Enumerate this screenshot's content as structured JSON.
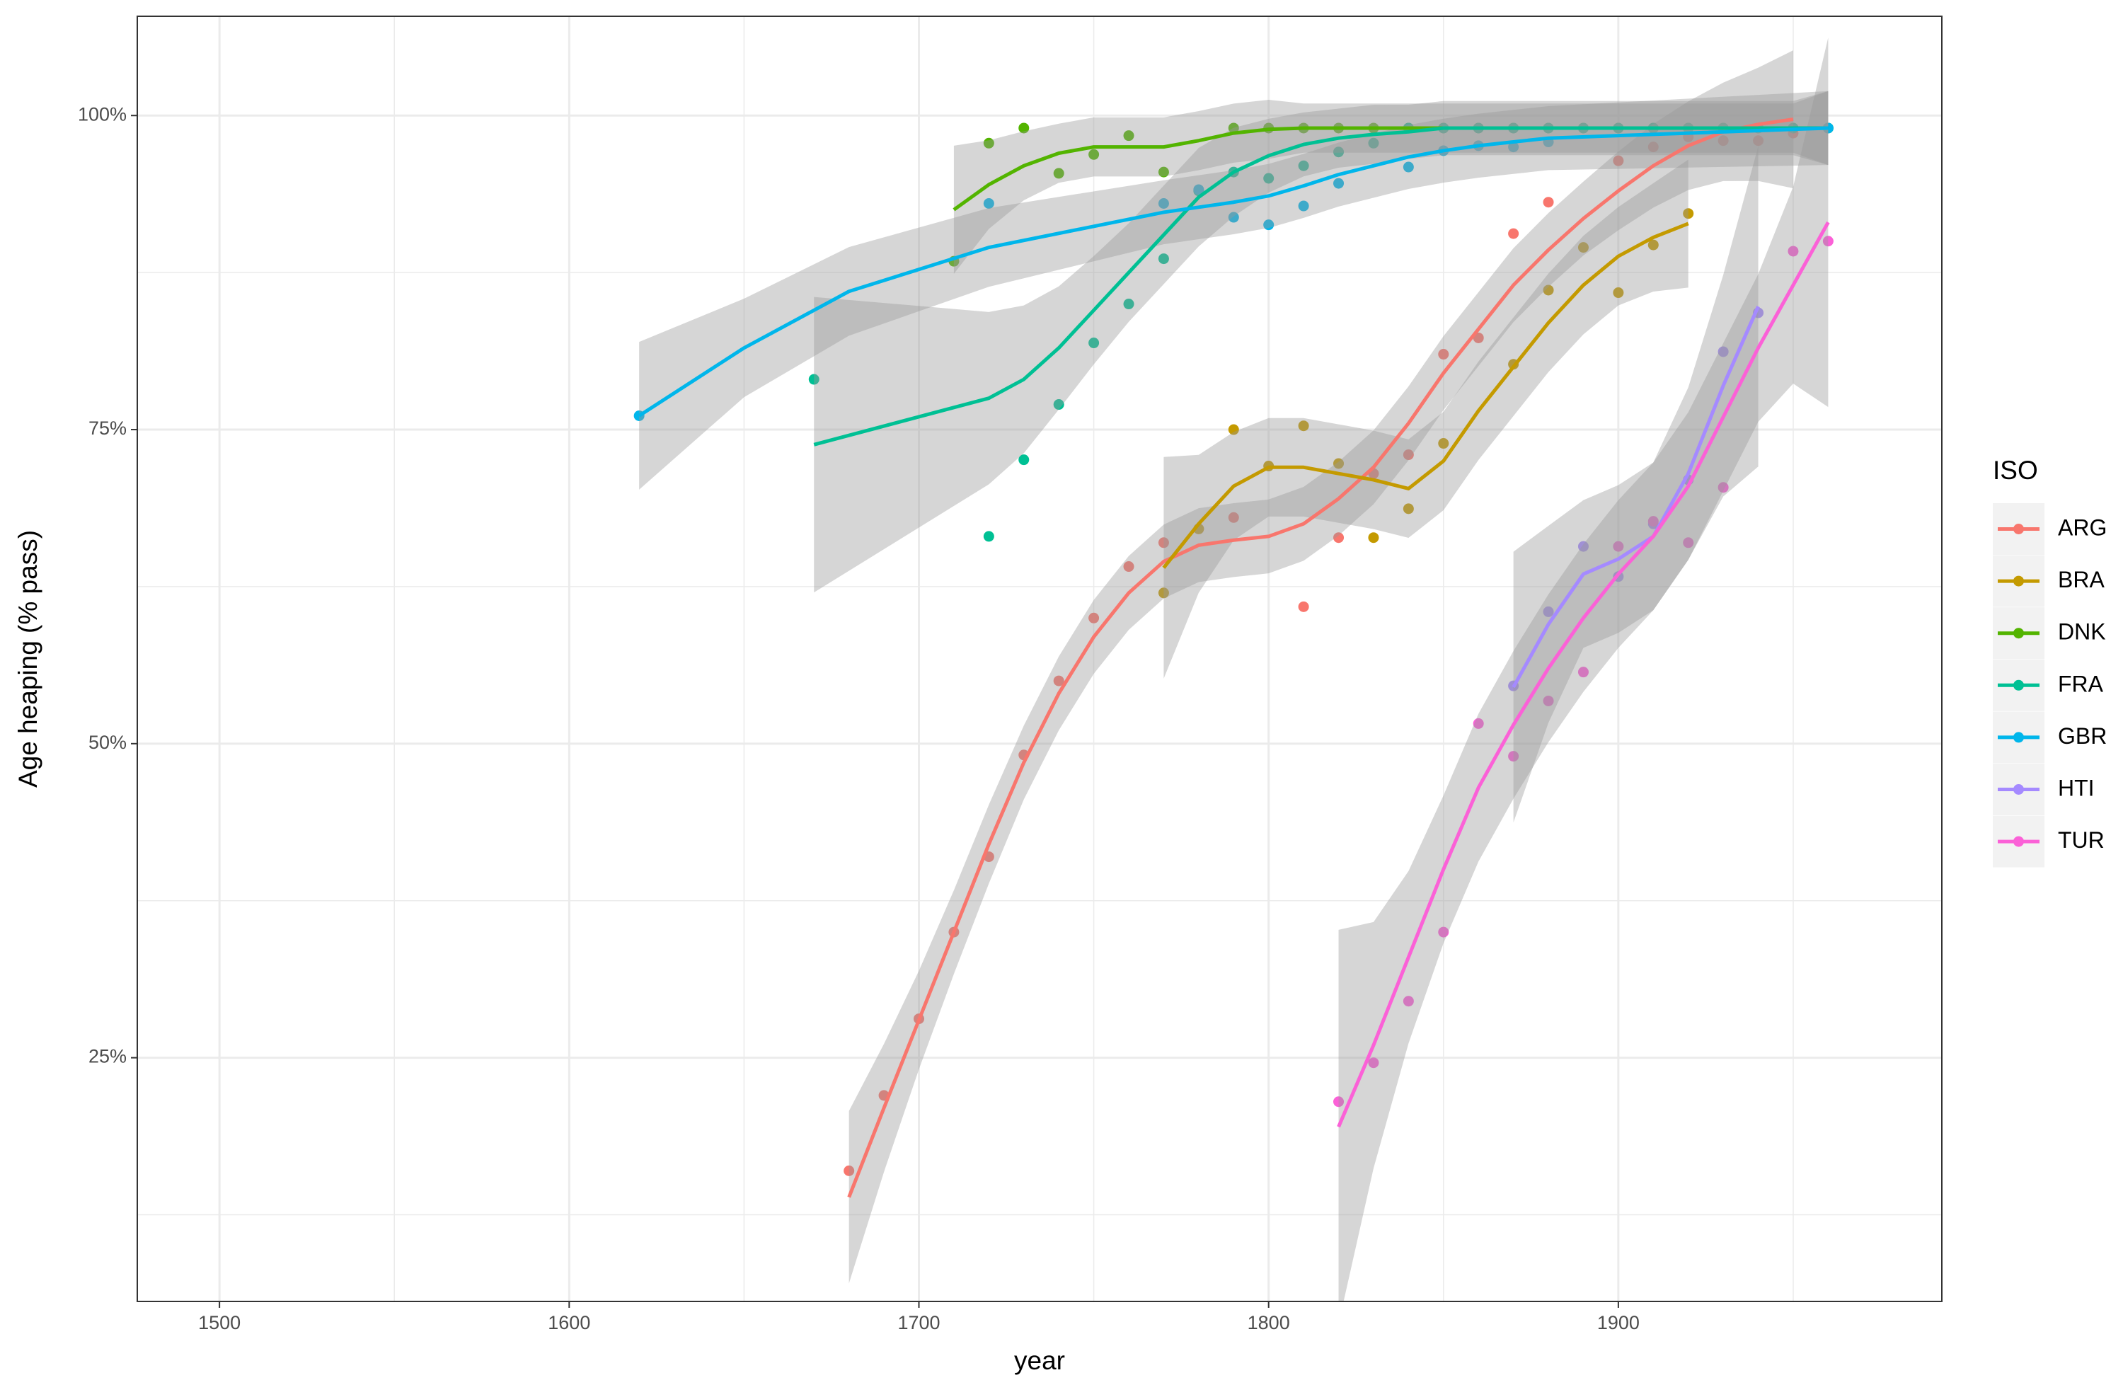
{
  "chart_data": {
    "type": "scatter-smooth",
    "x_label": "year",
    "y_label": "Age heaping (% pass)",
    "legend_title": "ISO",
    "xlim": [
      1476.5,
      1992.5
    ],
    "ylim": [
      5.6,
      107.9
    ],
    "xticks": [
      1500,
      1600,
      1700,
      1800,
      1900
    ],
    "xminor_ticks": [
      1550,
      1650,
      1750,
      1850,
      1950
    ],
    "yticks": [
      {
        "value": 25,
        "label": "25%"
      },
      {
        "value": 50,
        "label": "50%"
      },
      {
        "value": 75,
        "label": "75%"
      },
      {
        "value": 100,
        "label": "100%"
      }
    ],
    "yminor_ticks": [
      12.5,
      37.5,
      62.5,
      87.5
    ],
    "grid": true,
    "legend": "right",
    "series": [
      {
        "name": "ARG",
        "color": "#F8766D",
        "x": [
          1680,
          1690,
          1700,
          1710,
          1720,
          1730,
          1740,
          1750,
          1760,
          1770,
          1780,
          1790,
          1800,
          1810,
          1820,
          1830,
          1840,
          1850,
          1860,
          1870,
          1880,
          1890,
          1900,
          1910,
          1920,
          1930,
          1940,
          1950
        ],
        "values": [
          16.0,
          22.0,
          28.1,
          35.0,
          41.0,
          49.1,
          55.0,
          60.0,
          64.1,
          66.0,
          67.1,
          68.0,
          null,
          60.9,
          66.4,
          71.5,
          73.0,
          81.0,
          82.3,
          90.6,
          93.1,
          null,
          96.4,
          97.5,
          98.3,
          98.0,
          98.0,
          98.6
        ],
        "smooth": [
          13.9,
          21,
          28,
          35,
          42,
          48.5,
          54,
          58.5,
          62,
          64.5,
          65.8,
          66.2,
          66.5,
          67.5,
          69.5,
          72,
          75.5,
          79.5,
          83,
          86.5,
          89.3,
          91.8,
          94,
          96,
          97.6,
          98.7,
          99.3,
          99.7
        ],
        "se": [
          3.5,
          2.6,
          2,
          1.7,
          1.6,
          1.5,
          1.5,
          1.5,
          1.5,
          1.5,
          1.5,
          1.5,
          1.5,
          1.5,
          1.5,
          1.5,
          1.5,
          1.5,
          1.5,
          1.5,
          1.5,
          1.5,
          1.6,
          1.7,
          1.8,
          2,
          2.3,
          2.8
        ]
      },
      {
        "name": "BRA",
        "color": "#C49A00",
        "x": [
          1770,
          1780,
          1790,
          1800,
          1810,
          1820,
          1830,
          1840,
          1850,
          1860,
          1870,
          1880,
          1890,
          1900,
          1910,
          1920
        ],
        "values": [
          62.0,
          67.1,
          75.0,
          72.1,
          75.3,
          72.3,
          66.4,
          68.7,
          73.9,
          null,
          80.2,
          86.1,
          89.5,
          85.9,
          89.7,
          92.2
        ],
        "smooth": [
          64,
          67.5,
          70.5,
          72,
          72,
          71.5,
          71,
          70.3,
          72.5,
          76.5,
          80,
          83.5,
          86.5,
          88.8,
          90.3,
          91.4
        ],
        "se": [
          4.5,
          2.8,
          2.2,
          2,
          2,
          2,
          2,
          2,
          2,
          2,
          2,
          2,
          2,
          2,
          2.2,
          2.6
        ]
      },
      {
        "name": "DNK",
        "color": "#53B400",
        "x": [
          1710,
          1720,
          1730,
          1740,
          1750,
          1760,
          1770,
          1780,
          1790,
          1800,
          1810,
          1820,
          1830,
          1840,
          1850,
          1860,
          1870,
          1880,
          1890,
          1900,
          1910,
          1920,
          1930,
          1940,
          1950,
          1960
        ],
        "values": [
          88.4,
          97.8,
          99.0,
          95.4,
          96.9,
          98.4,
          95.5,
          null,
          99.0,
          99.0,
          99.0,
          99.0,
          99.0,
          99.0,
          99.0,
          99.0,
          99.0,
          99.0,
          99.0,
          99.0,
          99.0,
          99.0,
          99.0,
          99.0,
          99.0,
          99.0
        ],
        "smooth": [
          92.5,
          94.5,
          96,
          97,
          97.5,
          97.5,
          97.5,
          98,
          98.6,
          98.9,
          99.0,
          99.0,
          99.0,
          99.0,
          99.0,
          99.0,
          99.0,
          99.0,
          99.0,
          99.0,
          99.0,
          99.0,
          99.0,
          99.0,
          99.0,
          99.0
        ],
        "se": [
          2.6,
          1.8,
          1.4,
          1.2,
          1.2,
          1.2,
          1.2,
          1.2,
          1.2,
          1.2,
          1,
          1,
          1,
          1,
          1,
          1,
          1,
          1,
          1,
          1,
          1,
          1,
          1,
          1,
          1,
          1.5
        ]
      },
      {
        "name": "FRA",
        "color": "#00C094",
        "x": [
          1670,
          1720,
          1730,
          1740,
          1750,
          1760,
          1770,
          1780,
          1790,
          1800,
          1810,
          1820,
          1830,
          1840,
          1850,
          1860,
          1870,
          1880,
          1890,
          1900,
          1910,
          1920,
          1930,
          1940,
          1950,
          1960
        ],
        "values": [
          79.0,
          66.5,
          72.6,
          77.0,
          81.9,
          85.0,
          88.6,
          94.0,
          95.5,
          95.0,
          96.0,
          97.1,
          97.8,
          99.0,
          99.0,
          99.0,
          99.0,
          99.0,
          99.0,
          99.0,
          99.0,
          99.0,
          99.0,
          99.0,
          99.0,
          99.0
        ],
        "smooth": [
          73.8,
          77.5,
          79,
          81.5,
          84.5,
          87.5,
          90.5,
          93.5,
          95.5,
          96.8,
          97.7,
          98.2,
          98.5,
          98.7,
          99.0,
          99.0,
          99.0,
          99.0,
          99.0,
          99.0,
          99.0,
          99.0,
          99.0,
          99.0,
          99.0,
          99.0
        ],
        "se": [
          6,
          3.5,
          3,
          2.5,
          2.2,
          2,
          2,
          2,
          1.8,
          1.5,
          1.3,
          1.2,
          1.2,
          1.1,
          1.1,
          1.1,
          1.1,
          1.1,
          1.1,
          1.1,
          1.1,
          1.1,
          1.1,
          1.1,
          1.1,
          1.5
        ]
      },
      {
        "name": "GBR",
        "color": "#00B6EB",
        "x": [
          1620,
          1650,
          1680,
          1720,
          1770,
          1780,
          1790,
          1800,
          1810,
          1820,
          1840,
          1850,
          1860,
          1870,
          1880,
          1960
        ],
        "values": [
          76.1,
          null,
          null,
          93.0,
          93.0,
          94.1,
          91.9,
          91.3,
          92.8,
          94.6,
          95.9,
          97.2,
          97.6,
          97.5,
          97.9,
          99.0
        ],
        "smooth": [
          76.1,
          81.5,
          86,
          89.5,
          92.3,
          92.7,
          93.1,
          93.6,
          94.4,
          95.3,
          96.7,
          97.2,
          97.6,
          97.9,
          98.2,
          99.0
        ],
        "se": [
          3,
          2,
          1.8,
          1.6,
          1.3,
          1.3,
          1.3,
          1.3,
          1.3,
          1.3,
          1.3,
          1.3,
          1.3,
          1.3,
          1.3,
          1.5
        ]
      },
      {
        "name": "HTI",
        "color": "#A58AFF",
        "x": [
          1870,
          1880,
          1890,
          1900,
          1910,
          1920,
          1930,
          1940
        ],
        "values": [
          54.6,
          60.5,
          65.7,
          63.3,
          67.5,
          71.0,
          81.2,
          84.3
        ],
        "smooth": [
          54.5,
          59.5,
          63.5,
          64.7,
          66.5,
          71.5,
          78.5,
          84.8
        ],
        "se": [
          5.5,
          4,
          3,
          3,
          3,
          3.5,
          4.5,
          6.5
        ]
      },
      {
        "name": "TUR",
        "color": "#FB61D7",
        "x": [
          1820,
          1830,
          1840,
          1850,
          1860,
          1870,
          1880,
          1890,
          1900,
          1910,
          1920,
          1930,
          1940,
          1950,
          1960
        ],
        "values": [
          21.5,
          24.6,
          29.5,
          35.0,
          51.6,
          49.0,
          53.4,
          55.7,
          65.7,
          67.7,
          66.0,
          70.4,
          null,
          89.2,
          90.0
        ],
        "smooth": [
          19.5,
          26,
          33,
          40,
          46.5,
          51.5,
          56,
          60,
          63.5,
          66.5,
          70.5,
          76,
          81.5,
          86.5,
          91.5
        ],
        "se": [
          8,
          5,
          3.5,
          3,
          3,
          3,
          3,
          3,
          3,
          3,
          3,
          3,
          3,
          4,
          7.5
        ]
      }
    ]
  }
}
